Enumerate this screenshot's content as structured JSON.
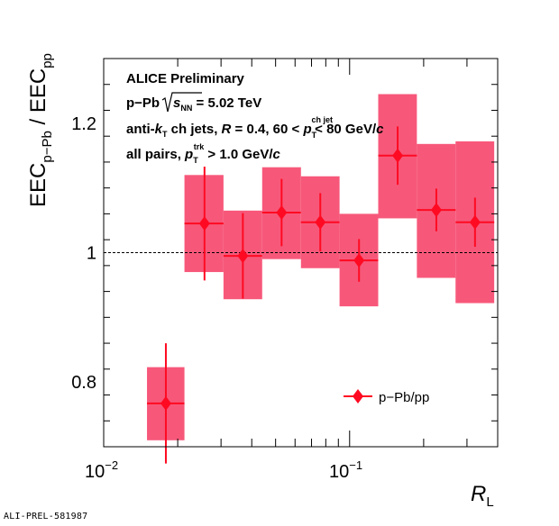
{
  "chart_data": {
    "type": "scatter",
    "x_scale": "log",
    "xlim": [
      0.01,
      0.4
    ],
    "ylim": [
      0.7,
      1.3
    ],
    "y_ticks": [
      0.8,
      1,
      1.2
    ],
    "y_tick_labels": [
      "0.8",
      "1",
      "1.2"
    ],
    "x_tick_labels": {
      "major1": {
        "base": "10",
        "exp": "−2"
      },
      "major2": {
        "base": "10",
        "exp": "−1"
      }
    },
    "xlabel": {
      "main": "R",
      "sub": "L"
    },
    "ylabel": {
      "p1": "EEC",
      "s1": "p−Pb",
      "p2": " / EEC",
      "s2": "pp"
    },
    "reference_line": 1.0,
    "annotations": {
      "line1": "ALICE Preliminary",
      "line2": {
        "a": "p−Pb ",
        "b": "s",
        "c": "NN",
        "d": " = 5.02 TeV"
      },
      "line3": {
        "a": "anti-",
        "b": "k",
        "c": "T",
        "d": " ch jets,  ",
        "e": "R",
        "f": " = 0.4, 60 <  ",
        "g": "p",
        "h": "T",
        "i": "ch jet",
        "j": " < 80 GeV/",
        "k": "c"
      },
      "line4": {
        "a": "all pairs,  ",
        "b": "p",
        "c": "T",
        "d": "trk",
        "e": " > 1.0 GeV/",
        "f": "c"
      }
    },
    "series": [
      {
        "name": "p−Pb/pp",
        "color": "#ff0a22",
        "band_color": "#f7587a",
        "points": [
          {
            "x": 0.0179,
            "xlo": 0.015,
            "xhi": 0.0213,
            "y": 0.767,
            "stat": 0.093,
            "syslo": 0.71,
            "syshi": 0.823
          },
          {
            "x": 0.0257,
            "xlo": 0.0213,
            "xhi": 0.0307,
            "y": 1.045,
            "stat": 0.088,
            "syslo": 0.97,
            "syshi": 1.12
          },
          {
            "x": 0.0368,
            "xlo": 0.0307,
            "xhi": 0.0441,
            "y": 0.995,
            "stat": 0.066,
            "syslo": 0.928,
            "syshi": 1.065
          },
          {
            "x": 0.0529,
            "xlo": 0.0441,
            "xhi": 0.0634,
            "y": 1.062,
            "stat": 0.052,
            "syslo": 0.99,
            "syshi": 1.132
          },
          {
            "x": 0.076,
            "xlo": 0.0634,
            "xhi": 0.091,
            "y": 1.047,
            "stat": 0.045,
            "syslo": 0.976,
            "syshi": 1.118
          },
          {
            "x": 0.1092,
            "xlo": 0.091,
            "xhi": 0.1307,
            "y": 0.988,
            "stat": 0.033,
            "syslo": 0.917,
            "syshi": 1.06
          },
          {
            "x": 0.1568,
            "xlo": 0.1307,
            "xhi": 0.1877,
            "y": 1.15,
            "stat": 0.045,
            "syslo": 1.053,
            "syshi": 1.245
          },
          {
            "x": 0.2252,
            "xlo": 0.1877,
            "xhi": 0.2696,
            "y": 1.066,
            "stat": 0.033,
            "syslo": 0.961,
            "syshi": 1.168
          },
          {
            "x": 0.3235,
            "xlo": 0.2696,
            "xhi": 0.3872,
            "y": 1.047,
            "stat": 0.038,
            "syslo": 0.922,
            "syshi": 1.172
          }
        ]
      }
    ],
    "legend": {
      "label": "p−Pb/pp",
      "position": "bottom-right"
    },
    "grid": false
  },
  "watermark": "ALI-PREL-581987"
}
